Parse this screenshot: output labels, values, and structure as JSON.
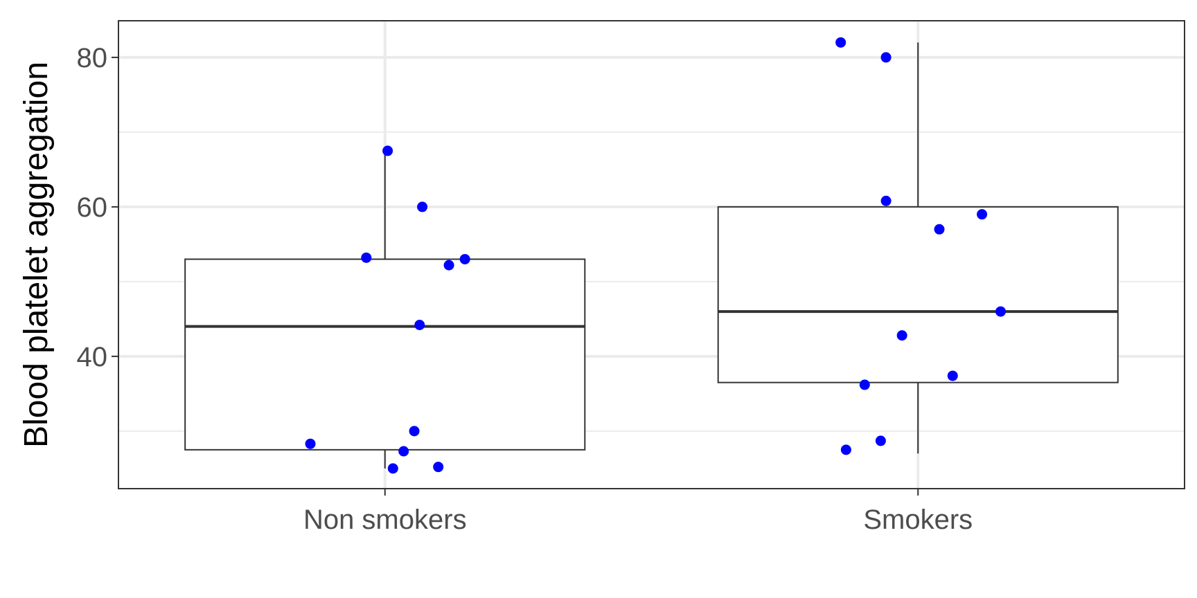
{
  "chart_data": {
    "type": "boxplot",
    "title": "",
    "xlabel": "",
    "ylabel": "Blood platelet aggregation",
    "ylim": [
      22.3,
      84.9
    ],
    "yticks": [
      40,
      60,
      80
    ],
    "ylabels": [
      "40",
      "60",
      "80"
    ],
    "minor_yticks": [
      30,
      50,
      70
    ],
    "grid": true,
    "legend": "none",
    "categories": [
      "Non smokers",
      "Smokers"
    ],
    "boxes": [
      {
        "category": "Non smokers",
        "whisker_low": 25,
        "q1": 27.5,
        "median": 44,
        "q3": 53,
        "whisker_high": 67.5
      },
      {
        "category": "Smokers",
        "whisker_low": 27,
        "q1": 36.5,
        "median": 46,
        "q3": 60,
        "whisker_high": 82
      }
    ],
    "points": [
      {
        "category": "Non smokers",
        "values": [
          67.5,
          60,
          53.2,
          53,
          52.2,
          44.2,
          30,
          28.3,
          27.3,
          25,
          25.2
        ]
      },
      {
        "category": "Smokers",
        "values": [
          82,
          80,
          60.8,
          59,
          57,
          46,
          42.8,
          37.4,
          36.2,
          28.7,
          27.5
        ]
      }
    ],
    "colors": {
      "points": "#0000ff",
      "box_stroke": "#333333",
      "grid_major": "#ebebeb",
      "grid_minor": "#ebebeb",
      "panel_border": "#333333"
    }
  }
}
